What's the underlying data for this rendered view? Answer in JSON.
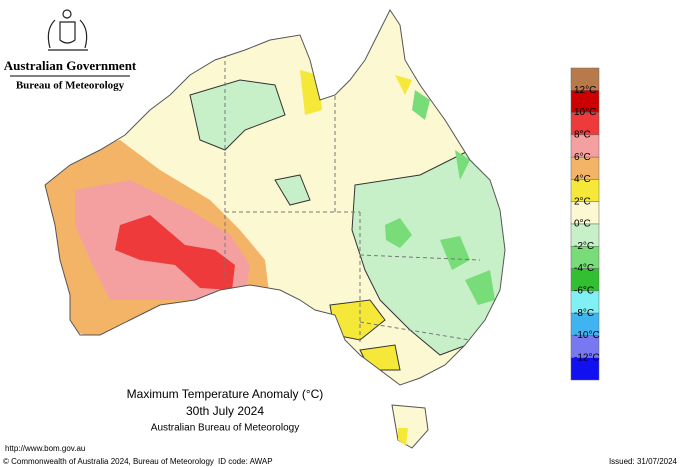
{
  "header": {
    "government": "Australian Government",
    "agency": "Bureau of Meteorology"
  },
  "map": {
    "title": "Maximum Temperature Anomaly (°C)",
    "date": "30th July 2024",
    "source": "Australian Bureau of Meteorology"
  },
  "legend": {
    "labels": [
      "12°C",
      "10°C",
      "8°C",
      "6°C",
      "4°C",
      "2°C",
      "0°C",
      "-2°C",
      "-4°C",
      "-6°C",
      "-8°C",
      "-10°C",
      "-12°C"
    ],
    "colors": [
      "#b87a4a",
      "#cc0000",
      "#ee3a3a",
      "#f4a0a0",
      "#f4b468",
      "#f6e838",
      "#fbf8d2",
      "#c8f0c8",
      "#78dc78",
      "#32c032",
      "#80f0f4",
      "#40b4f0",
      "#7878f0",
      "#1010f0"
    ]
  },
  "footer": {
    "url": "http://www.bom.gov.au",
    "copyright": "© Commonwealth of Australia 2024, Bureau of Meteorology",
    "id_code": "ID code: AWAP",
    "issued": "Issued: 31/07/2024"
  }
}
